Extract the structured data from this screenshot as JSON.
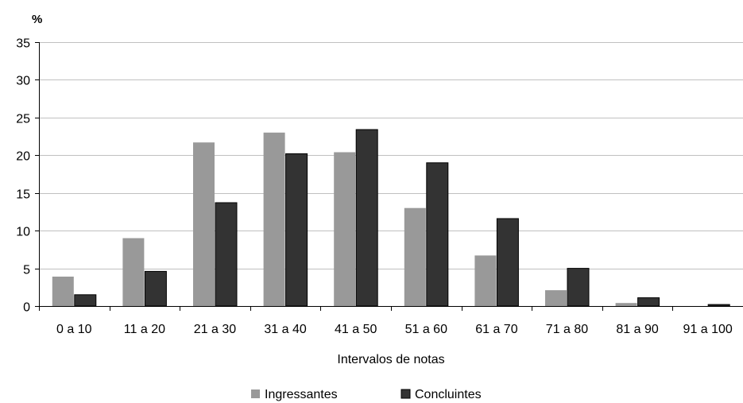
{
  "chart_data": {
    "type": "bar",
    "unit_label": "%",
    "xlabel": "Intervalos de notas",
    "ylabel": "",
    "ylim": [
      0,
      35
    ],
    "yticks": [
      0,
      5,
      10,
      15,
      20,
      25,
      30,
      35
    ],
    "grid": true,
    "legend_position": "bottom",
    "categories": [
      "0 a 10",
      "11 a 20",
      "21 a 30",
      "31 a 40",
      "41 a 50",
      "51 a 60",
      "61 a 70",
      "71 a 80",
      "81 a 90",
      "91 a 100"
    ],
    "series": [
      {
        "name": "Ingressantes",
        "color": "#999999",
        "values": [
          3.9,
          9.0,
          21.7,
          23.0,
          20.4,
          13.0,
          6.7,
          2.1,
          0.4,
          0.0
        ]
      },
      {
        "name": "Concluintes",
        "color": "#333333",
        "values": [
          1.5,
          4.6,
          13.7,
          20.2,
          23.4,
          19.0,
          11.6,
          5.0,
          1.1,
          0.2
        ]
      }
    ]
  }
}
